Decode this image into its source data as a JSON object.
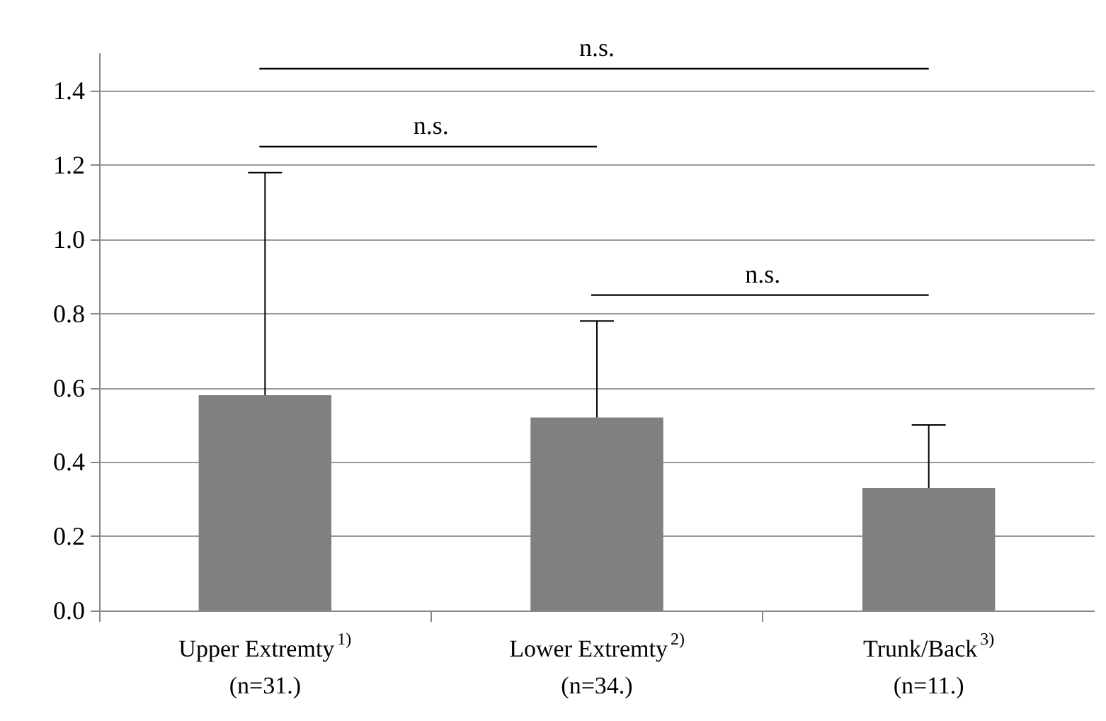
{
  "chart_data": {
    "type": "bar",
    "categories": [
      "Upper Extremty$^{1)}$\n(n=31.)",
      "Lower Extremty$^{2)}$\n(n=34.)",
      "Trunk/Back$^{3)}$\n(n=11.)"
    ],
    "values": [
      0.58,
      0.52,
      0.33
    ],
    "errors": [
      [
        0.58,
        1.18
      ],
      [
        0.52,
        0.78
      ],
      [
        0.33,
        0.5
      ]
    ],
    "color": "#808080",
    "ylim": [
      0,
      1.5
    ],
    "yticks": [
      {
        "value": 0,
        "label": "0.0"
      },
      {
        "value": 0.2,
        "label": "0.2"
      },
      {
        "value": 0.4,
        "label": "0.4"
      },
      {
        "value": 0.6,
        "label": "0.6"
      },
      {
        "value": 0.8,
        "label": "0.8"
      },
      {
        "value": 1,
        "label": "1.0"
      },
      {
        "value": 1.2,
        "label": "1.2"
      },
      {
        "value": 1.4,
        "label": "1.4"
      }
    ],
    "grid": "y",
    "annotations": [
      "n.s.",
      "n.s.",
      "n.s."
    ]
  }
}
